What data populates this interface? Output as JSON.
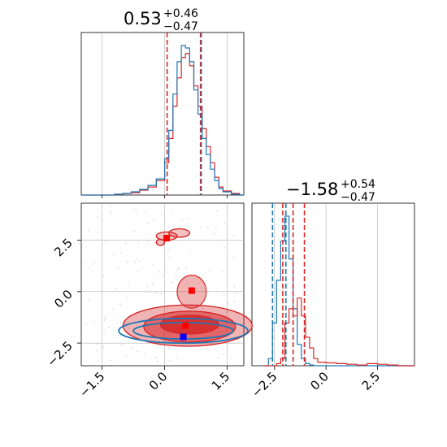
{
  "colors": {
    "red": "#d62728",
    "blue": "#1f77b4",
    "grid": "#b0b0b0",
    "red_marker": "#ff0000",
    "blue_marker": "#0000ff"
  },
  "titles": {
    "p1": {
      "main": "0.53",
      "sup": "+0.46",
      "sub": "−0.47"
    },
    "p2": {
      "main": "−1.58",
      "sup": "+0.54",
      "sub": "−0.47"
    }
  },
  "chart_data": [
    {
      "type": "histogram",
      "panel": "top-left marginal (parameter 1)",
      "xlim": [
        -2.0,
        1.9
      ],
      "grid": true,
      "x": [
        -2.0,
        -1.8,
        -1.6,
        -1.4,
        -1.2,
        -1.0,
        -0.8,
        -0.6,
        -0.4,
        -0.2,
        0.0,
        0.1,
        0.2,
        0.3,
        0.4,
        0.5,
        0.6,
        0.7,
        0.8,
        0.9,
        1.0,
        1.1,
        1.2,
        1.3,
        1.4,
        1.6,
        1.8
      ],
      "series": [
        {
          "color": "red",
          "values": [
            0,
            0,
            0,
            0,
            1,
            2,
            3,
            6,
            10,
            18,
            40,
            70,
            110,
            145,
            170,
            175,
            160,
            135,
            110,
            82,
            60,
            40,
            22,
            10,
            5,
            2,
            0
          ]
        },
        {
          "color": "blue",
          "values": [
            0,
            0,
            0,
            0,
            1,
            2,
            4,
            7,
            12,
            20,
            45,
            80,
            125,
            165,
            185,
            182,
            165,
            130,
            100,
            70,
            50,
            32,
            18,
            8,
            4,
            1,
            0
          ]
        }
      ],
      "vlines": [
        {
          "color": "red",
          "x": 0.06
        },
        {
          "color": "red",
          "x": 0.86
        },
        {
          "color": "blue",
          "x": 0.88
        }
      ],
      "x_ticks": [
        -1.5,
        0.0,
        1.5
      ]
    },
    {
      "type": "contour",
      "panel": "bottom-left 2D (parameter 1 vs parameter 2)",
      "xlim": [
        -2.0,
        1.9
      ],
      "ylim": [
        -3.6,
        4.3
      ],
      "grid": true,
      "x_ticks": [
        -1.5,
        0.0,
        1.5
      ],
      "x_tick_labels": [
        "−1.5",
        "0.0",
        "1.5"
      ],
      "y_ticks": [
        -2.5,
        0.0,
        2.5
      ],
      "y_tick_labels": [
        "−2.5",
        "0.0",
        "2.5"
      ],
      "red_contours": [
        {
          "level": "outer",
          "cx": 0.55,
          "cy": -1.65,
          "rx": 1.55,
          "ry": 1.0
        },
        {
          "level": "middle",
          "cx": 0.6,
          "cy": -1.7,
          "rx": 1.1,
          "ry": 0.75
        },
        {
          "level": "inner",
          "cx": 0.6,
          "cy": -1.6,
          "rx": 0.7,
          "ry": 0.45
        }
      ],
      "red_blob": {
        "cx": 0.65,
        "cy": 0.0,
        "rx": 0.35,
        "ry": 0.8
      },
      "red_island_top": [
        {
          "cx": 0.05,
          "cy": 2.7,
          "rx": 0.25,
          "ry": 0.2
        },
        {
          "cx": 0.35,
          "cy": 2.85,
          "rx": 0.25,
          "ry": 0.2
        },
        {
          "cx": -0.1,
          "cy": 2.4,
          "rx": 0.1,
          "ry": 0.15
        }
      ],
      "blue_contours": [
        {
          "level": "outer",
          "cx": 0.45,
          "cy": -1.9,
          "rx": 1.55,
          "ry": 0.6
        },
        {
          "level": "inner",
          "cx": 0.45,
          "cy": -1.9,
          "rx": 1.2,
          "ry": 0.4
        }
      ],
      "markers": [
        {
          "color": "red_marker",
          "x": 0.05,
          "y": 2.6
        },
        {
          "color": "red_marker",
          "x": 0.65,
          "y": 0.05
        },
        {
          "color": "red_marker",
          "x": 0.5,
          "y": -1.65
        },
        {
          "color": "blue_marker",
          "x": 0.45,
          "y": -2.2
        }
      ]
    },
    {
      "type": "histogram",
      "panel": "bottom-right marginal (parameter 2)",
      "xlim": [
        -3.6,
        4.3
      ],
      "grid": true,
      "x_ticks": [
        -2.5,
        0.0,
        2.5
      ],
      "x_tick_labels": [
        "−2.5",
        "0.0",
        "2.5"
      ],
      "x": [
        -3.0,
        -2.8,
        -2.6,
        -2.4,
        -2.2,
        -2.0,
        -1.8,
        -1.6,
        -1.4,
        -1.2,
        -1.0,
        -0.8,
        -0.6,
        -0.4,
        0.0,
        0.5,
        1.0,
        1.5,
        2.0,
        2.5,
        3.0,
        3.5
      ],
      "series": [
        {
          "color": "blue",
          "values": [
            0,
            10,
            60,
            120,
            175,
            210,
            150,
            80,
            30,
            10,
            3,
            1,
            0,
            0,
            0,
            0,
            0,
            0,
            0,
            0,
            0,
            0
          ]
        },
        {
          "color": "red",
          "values": [
            0,
            0,
            0,
            3,
            10,
            60,
            80,
            70,
            95,
            70,
            40,
            25,
            10,
            5,
            4,
            3,
            2,
            1,
            3,
            2,
            1,
            0
          ]
        }
      ],
      "vlines": [
        {
          "color": "blue",
          "x": -2.6,
          "style": "dash"
        },
        {
          "color": "blue",
          "x": -1.95,
          "style": "dash"
        },
        {
          "color": "red",
          "x": -2.1,
          "style": "dash"
        },
        {
          "color": "red",
          "x": -1.6,
          "style": "dash"
        },
        {
          "color": "red",
          "x": -1.05,
          "style": "dash"
        }
      ]
    }
  ]
}
